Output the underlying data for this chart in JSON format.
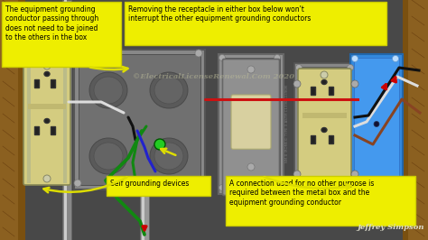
{
  "bg_color": "#1a1a1a",
  "wall_left_color": "#8B6020",
  "wall_right_color": "#7a5510",
  "bg_wall_color": "#4a4a4a",
  "metal_box1_color": "#888888",
  "metal_box1_inner": "#6e6e6e",
  "metal_box2_color": "#909090",
  "metal_box2_inner": "#7a7a7a",
  "metal_box3_color": "#888888",
  "blue_box_color": "#3388dd",
  "blue_box_inner": "#4499ee",
  "outlet_body_color": "#d4cc80",
  "outlet_border_color": "#888866",
  "switch_body_color": "#909090",
  "switch_plate_color": "#d8d0a0",
  "switch_plate_border": "#aaa870",
  "annotation_bg": "#eeee00",
  "annotation_border": "#cccc00",
  "annotation_text": "#000000",
  "watermark_color": "#bbbb99",
  "wire_red": "#cc1111",
  "wire_black": "#111111",
  "wire_white": "#dddddd",
  "wire_green": "#118811",
  "wire_blue": "#2222cc",
  "wire_brown": "#884422",
  "wire_arrow": "#cc0000",
  "screw_color": "#bbbbbb",
  "conduit_color": "#aaaaaa",
  "yoke_color": "#999966",
  "label_top_left": "The equipment grounding\nconductor passing through\ndoes not need to be joined\nto the others in the box",
  "label_top_right": "Removing the receptacle in either box below won't\ninterrupt the other equipment grounding conductors",
  "label_bottom_left": "Self grounding devices",
  "label_bottom_right": "A connection used for no other purpose is\nrequired between the metal box and the\nequipment grounding conductor",
  "watermark": "©ElectricalLicenseRenewal.Com 2020",
  "author": "Jeffrey Simpson"
}
